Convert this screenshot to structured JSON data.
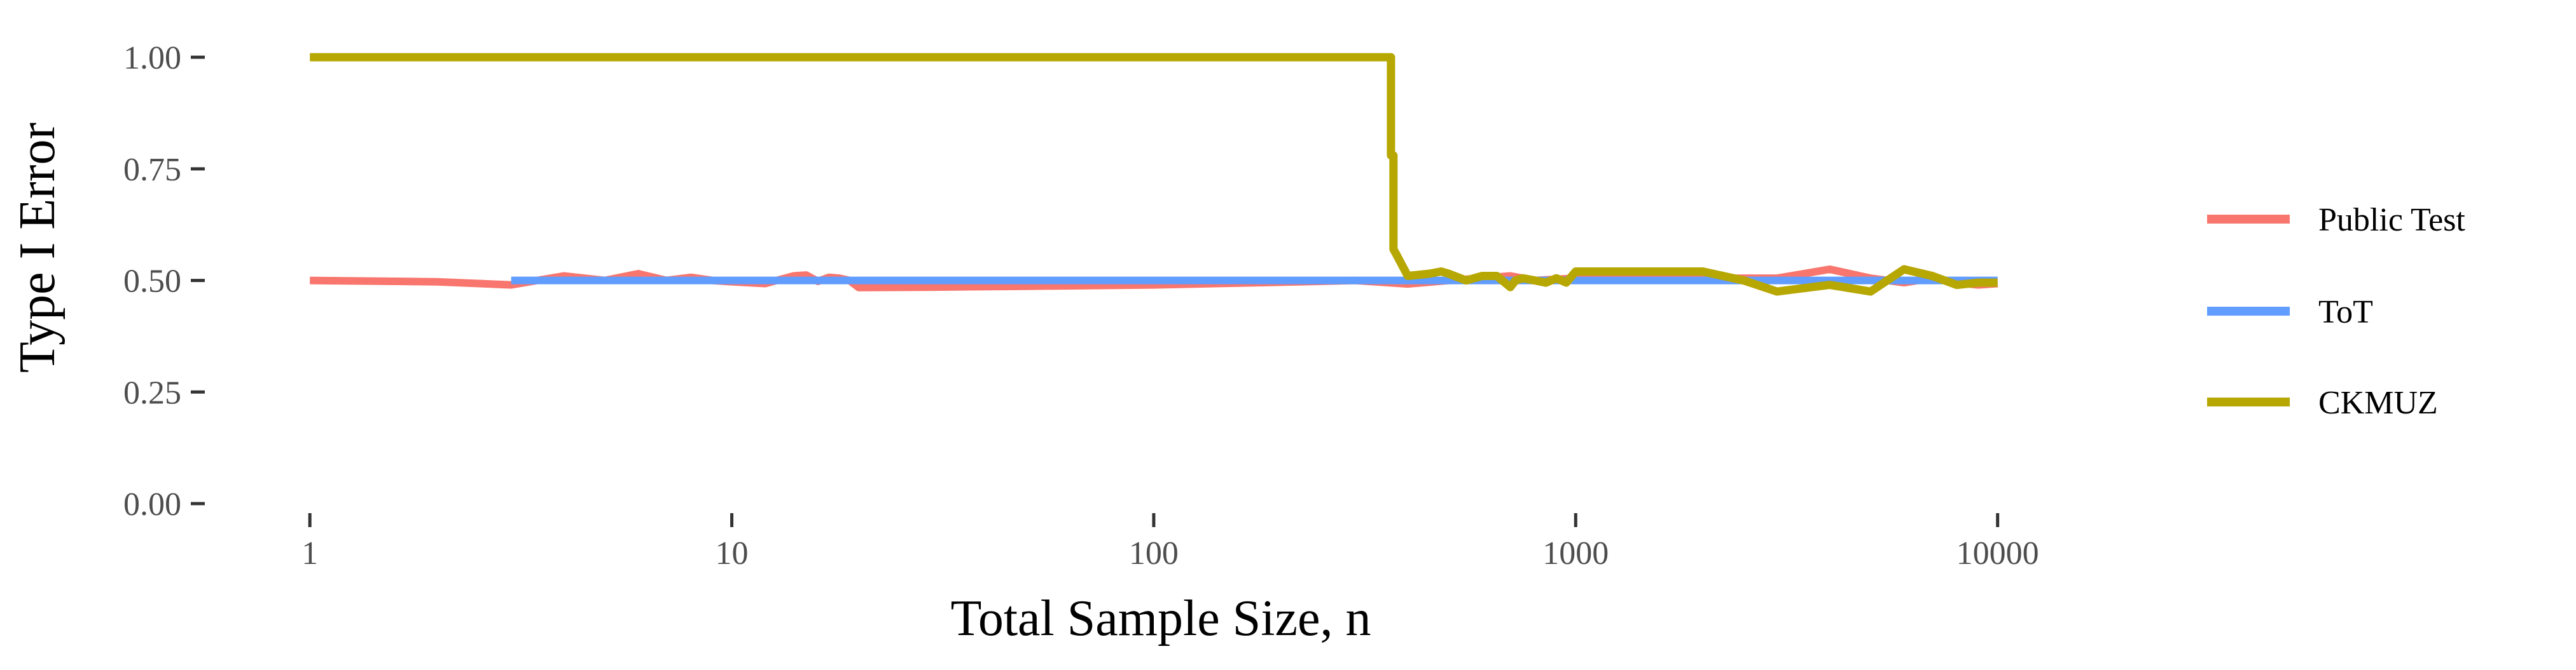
{
  "chart_data": {
    "type": "line",
    "title": "",
    "xlabel": "Total Sample Size, n",
    "ylabel": "Type I Error",
    "x_scale": "log10",
    "xlim": [
      0.6,
      18000
    ],
    "ylim": [
      0,
      1.05
    ],
    "x_ticks": [
      1,
      10,
      100,
      1000,
      10000
    ],
    "x_tick_labels": [
      "1",
      "10",
      "100",
      "1000",
      "10000"
    ],
    "y_ticks": [
      0,
      0.25,
      0.5,
      0.75,
      1.0
    ],
    "y_tick_labels": [
      "0.00",
      "0.25",
      "0.50",
      "0.75",
      "1.00"
    ],
    "grid": false,
    "legend_position": "right",
    "series": [
      {
        "name": "Public Test",
        "color": "#F8766D",
        "x": [
          1,
          2,
          3,
          4,
          5,
          6,
          7,
          8,
          9,
          10,
          12,
          14,
          15,
          16,
          17,
          18,
          19,
          20,
          30,
          50,
          100,
          200,
          300,
          400,
          500,
          600,
          700,
          800,
          1000,
          1500,
          2000,
          3000,
          4000,
          5000,
          6000,
          7000,
          8000,
          9000,
          10000
        ],
        "y": [
          0.5,
          0.497,
          0.49,
          0.51,
          0.5,
          0.515,
          0.5,
          0.507,
          0.5,
          0.497,
          0.493,
          0.51,
          0.512,
          0.498,
          0.507,
          0.505,
          0.5,
          0.484,
          0.485,
          0.487,
          0.49,
          0.496,
          0.5,
          0.492,
          0.5,
          0.505,
          0.51,
          0.5,
          0.505,
          0.51,
          0.505,
          0.505,
          0.525,
          0.505,
          0.495,
          0.505,
          0.495,
          0.49,
          0.493
        ]
      },
      {
        "name": "ToT",
        "color": "#619CFF",
        "x": [
          3,
          10000
        ],
        "y": [
          0.5,
          0.5
        ]
      },
      {
        "name": "CKMUZ",
        "color": "#B7A702",
        "x": [
          1,
          365,
          365,
          370,
          370,
          375,
          400,
          450,
          480,
          500,
          550,
          600,
          650,
          700,
          720,
          750,
          800,
          850,
          900,
          950,
          1000,
          1500,
          2000,
          2500,
          3000,
          4000,
          5000,
          6000,
          7000,
          8000,
          9000,
          10000
        ],
        "y": [
          1.0,
          1.0,
          0.78,
          0.78,
          0.57,
          0.56,
          0.51,
          0.515,
          0.52,
          0.515,
          0.5,
          0.51,
          0.51,
          0.485,
          0.5,
          0.505,
          0.5,
          0.495,
          0.505,
          0.495,
          0.52,
          0.52,
          0.52,
          0.5,
          0.475,
          0.49,
          0.475,
          0.525,
          0.51,
          0.49,
          0.495,
          0.495
        ]
      }
    ]
  }
}
